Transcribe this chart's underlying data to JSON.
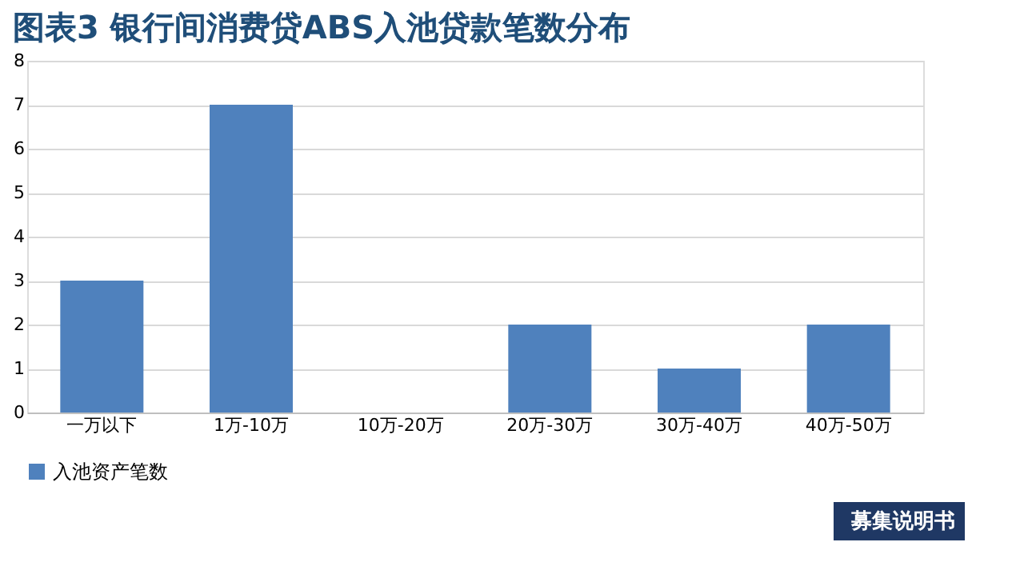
{
  "chart_data": {
    "type": "bar",
    "title": "图表3 银行间消费贷ABS入池贷款笔数分布",
    "categories": [
      "一万以下",
      "1万-10万",
      "10万-20万",
      "20万-30万",
      "30万-40万",
      "40万-50万"
    ],
    "series": [
      {
        "name": "入池资产笔数",
        "color": "#4f81bd",
        "values": [
          3,
          7,
          0,
          2,
          1,
          2
        ]
      }
    ],
    "ylim": [
      0,
      8
    ],
    "yticks": [
      0,
      1,
      2,
      3,
      4,
      5,
      6,
      7,
      8
    ],
    "grid": "y",
    "legend": "bottom",
    "annotations": [
      "募集说明书"
    ]
  }
}
